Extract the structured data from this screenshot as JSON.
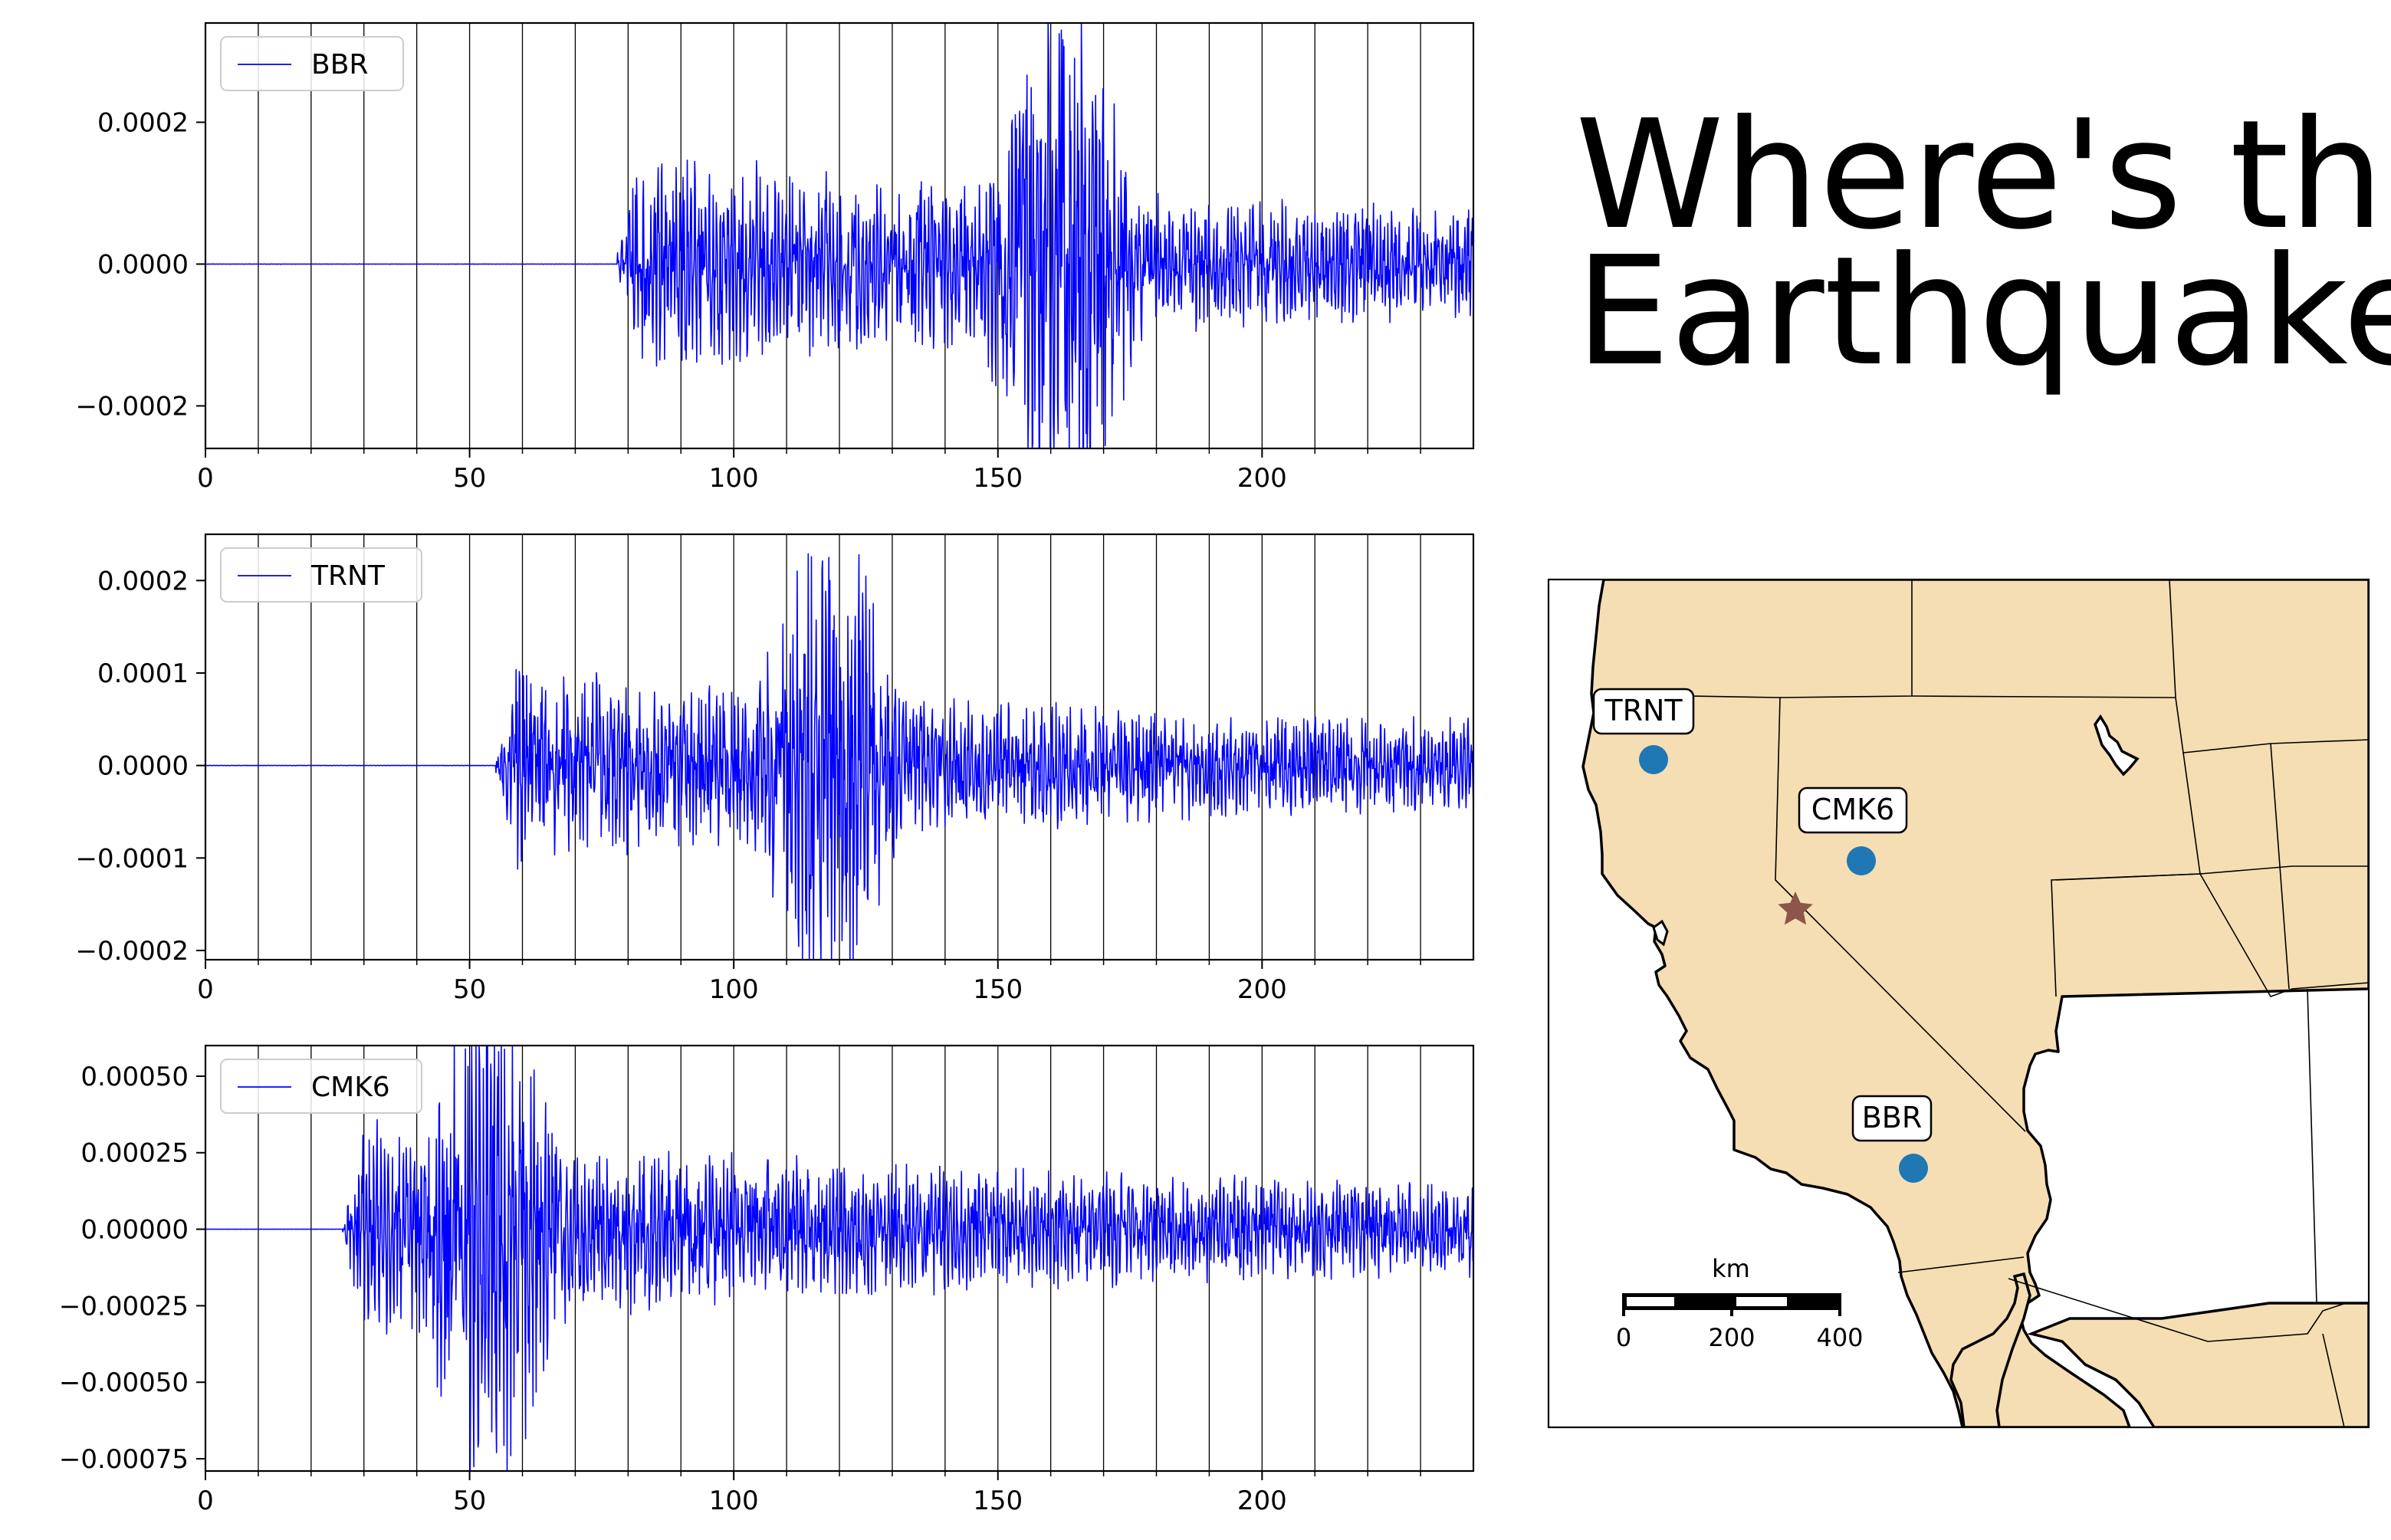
{
  "title_lines": [
    "Where's the",
    "Earthquake?"
  ],
  "colors": {
    "trace": "#0000ff",
    "grid": "#000000",
    "land": "#f5deb3",
    "station": "#1f77b4",
    "epicenter": "#8c564b"
  },
  "chart_data": [
    {
      "type": "line",
      "series": [
        {
          "name": "BBR",
          "color": "#0000ff"
        }
      ],
      "xlim": [
        0,
        240
      ],
      "ylim": [
        -0.00026,
        0.00034
      ],
      "x_ticks": [
        0,
        50,
        100,
        150,
        200
      ],
      "x_tick_labels": [
        "0",
        "50",
        "100",
        "150",
        "200"
      ],
      "y_ticks": [
        -0.0002,
        0.0,
        0.0002
      ],
      "y_tick_labels": [
        "−0.0002",
        "0.0000",
        "0.0002"
      ],
      "vertical_gridlines_every": 10,
      "legend": "upper-left",
      "signal": {
        "onset": 78,
        "max_peak": 0.00033,
        "min_peak": -0.00023,
        "peak_time": 162,
        "end_amplitude": 2e-05
      }
    },
    {
      "type": "line",
      "series": [
        {
          "name": "TRNT",
          "color": "#0000ff"
        }
      ],
      "xlim": [
        0,
        240
      ],
      "ylim": [
        -0.00021,
        0.00025
      ],
      "x_ticks": [
        0,
        50,
        100,
        150,
        200
      ],
      "x_tick_labels": [
        "0",
        "50",
        "100",
        "150",
        "200"
      ],
      "y_ticks": [
        -0.0002,
        -0.0001,
        0.0,
        0.0001,
        0.0002
      ],
      "y_tick_labels": [
        "−0.0002",
        "−0.0001",
        "0.0000",
        "0.0001",
        "0.0002"
      ],
      "vertical_gridlines_every": 10,
      "legend": "upper-left",
      "signal": {
        "onset": 55,
        "max_peak": 0.000225,
        "min_peak": -0.00019,
        "peak_time": 118,
        "end_amplitude": 1e-05
      }
    },
    {
      "type": "line",
      "series": [
        {
          "name": "CMK6",
          "color": "#0000ff"
        }
      ],
      "xlim": [
        0,
        240
      ],
      "ylim": [
        -0.00079,
        0.0006
      ],
      "x_ticks": [
        0,
        50,
        100,
        150,
        200
      ],
      "x_tick_labels": [
        "0",
        "50",
        "100",
        "150",
        "200"
      ],
      "y_ticks": [
        -0.00075,
        -0.0005,
        -0.00025,
        0.0,
        0.00025,
        0.0005
      ],
      "y_tick_labels": [
        "−0.00075",
        "−0.00050",
        "−0.00025",
        "0.00000",
        "0.00025",
        "0.00050"
      ],
      "vertical_gridlines_every": 10,
      "legend": "upper-left",
      "signal": {
        "onset": 26,
        "max_peak": 0.00054,
        "min_peak": -0.00073,
        "peak_time": 54,
        "end_amplitude": 1e-05
      }
    }
  ],
  "map": {
    "stations": [
      {
        "name": "TRNT"
      },
      {
        "name": "CMK6"
      },
      {
        "name": "BBR"
      }
    ],
    "scale_bar": {
      "unit": "km",
      "ticks": [
        "0",
        "200",
        "400"
      ]
    }
  }
}
